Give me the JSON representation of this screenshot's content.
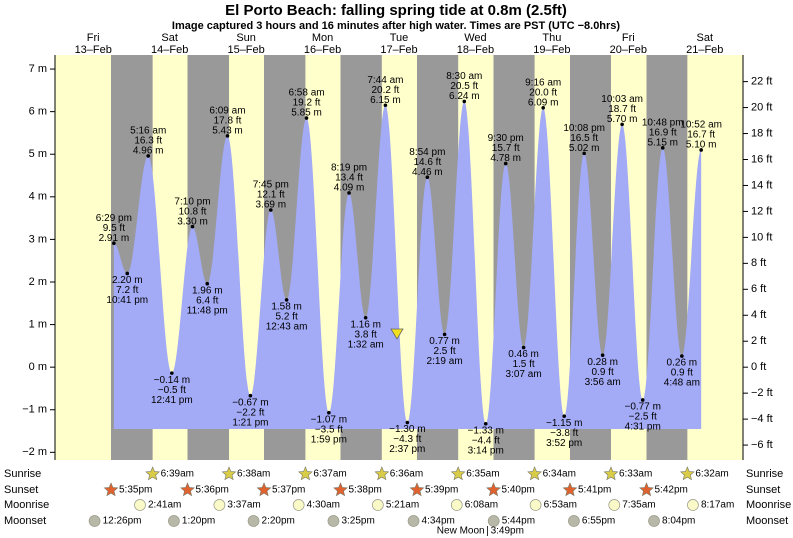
{
  "chart_data": {
    "type": "tide",
    "title": "El Porto Beach: falling  spring tide at 0.8m (2.5ft)",
    "subtitle": "Image captured 3 hours and 16 minutes after high water. Times are PST (UTC −8.0hrs)",
    "ylim": [
      -2.18,
      7.33
    ],
    "yticks": [
      {
        "value": -2,
        "label": "−2 m"
      },
      {
        "value": -1,
        "label": "−1 m"
      },
      {
        "value": 0,
        "label": "0 m"
      },
      {
        "value": 1,
        "label": "1 m"
      },
      {
        "value": 2,
        "label": "2 m"
      },
      {
        "value": 3,
        "label": "3 m"
      },
      {
        "value": 4,
        "label": "4 m"
      },
      {
        "value": 5,
        "label": "5 m"
      },
      {
        "value": 6,
        "label": "6 m"
      },
      {
        "value": 7,
        "label": "7 m"
      }
    ],
    "y2lim": [
      -7.15,
      24.05
    ],
    "y2ticks": [
      {
        "value": -6,
        "label": "−6 ft"
      },
      {
        "value": -4,
        "label": "−4 ft"
      },
      {
        "value": -2,
        "label": "−2 ft"
      },
      {
        "value": 0,
        "label": "0 ft"
      },
      {
        "value": 2,
        "label": "2 ft"
      },
      {
        "value": 4,
        "label": "4 ft"
      },
      {
        "value": 6,
        "label": "6 ft"
      },
      {
        "value": 8,
        "label": "8 ft"
      },
      {
        "value": 10,
        "label": "10 ft"
      },
      {
        "value": 12,
        "label": "12 ft"
      },
      {
        "value": 14,
        "label": "14 ft"
      },
      {
        "value": 16,
        "label": "16 ft"
      },
      {
        "value": 18,
        "label": "18 ft"
      },
      {
        "value": 20,
        "label": "20 ft"
      },
      {
        "value": 22,
        "label": "22 ft"
      }
    ],
    "colors": {
      "day": "#ffffcc",
      "night": "#999999",
      "tide": "#a3aaf6",
      "date": "#ee0000",
      "sunrise": "#d8cc48",
      "sunset": "#e0622e",
      "moonrise": "#fafac8",
      "moonset": "#b8b8a8"
    },
    "rows": {
      "sunrise": "Sunrise",
      "sunset": "Sunset",
      "moonrise": "Moonrise",
      "moonset": "Moonset"
    },
    "days": [
      {
        "weekday": "Fri",
        "date": "13–Feb",
        "sunrise": null,
        "sunset": "5:35pm",
        "moonrise": null,
        "moonset": "12:26pm",
        "tides": {
          "times": [
            "6:29 pm",
            "10:41 pm"
          ],
          "values": [
            2.91,
            2.2
          ],
          "value_labels": [
            "2.91 m",
            "2.20 m"
          ],
          "ft_labels": [
            "9.5 ft",
            "7.2 ft"
          ]
        }
      },
      {
        "weekday": "Sat",
        "date": "14–Feb",
        "sunrise": "6:39am",
        "sunset": "5:36pm",
        "moonrise": "2:41am",
        "moonset": "1:20pm",
        "tides": {
          "times": [
            "5:16 am",
            "12:41 pm",
            "7:10 pm",
            "11:48 pm"
          ],
          "values": [
            4.96,
            -0.14,
            3.3,
            1.96
          ],
          "value_labels": [
            "4.96 m",
            "−0.14 m",
            "3.30 m",
            "1.96 m"
          ],
          "ft_labels": [
            "16.3 ft",
            "−0.5 ft",
            "10.8 ft",
            "6.4 ft"
          ]
        }
      },
      {
        "weekday": "Sun",
        "date": "15–Feb",
        "sunrise": "6:38am",
        "sunset": "5:37pm",
        "moonrise": "3:37am",
        "moonset": "2:20pm",
        "tides": {
          "times": [
            "6:09 am",
            "1:21 pm",
            "7:45 pm"
          ],
          "values": [
            5.43,
            -0.67,
            3.69
          ],
          "value_labels": [
            "5.43 m",
            "−0.67 m",
            "3.69 m"
          ],
          "ft_labels": [
            "17.8 ft",
            "−2.2 ft",
            "12.1 ft"
          ]
        }
      },
      {
        "weekday": "Mon",
        "date": "16–Feb",
        "sunrise": "6:37am",
        "sunset": "5:38pm",
        "moonrise": "4:30am",
        "moonset": "3:25pm",
        "tides": {
          "times": [
            "12:43 am",
            "6:58 am",
            "1:59 pm",
            "8:19 pm"
          ],
          "values": [
            1.58,
            5.85,
            -1.07,
            4.09
          ],
          "value_labels": [
            "1.58 m",
            "5.85 m",
            "−1.07 m",
            "4.09 m"
          ],
          "ft_labels": [
            "5.2 ft",
            "19.2 ft",
            "−3.5 ft",
            "13.4 ft"
          ]
        }
      },
      {
        "weekday": "Tue",
        "date": "17–Feb",
        "sunrise": "6:36am",
        "sunset": "5:39pm",
        "moonrise": "5:21am",
        "moonset": "4:34pm",
        "tides": {
          "times": [
            "1:32 am",
            "7:44 am",
            "2:37 pm",
            "8:54 pm"
          ],
          "values": [
            1.16,
            6.15,
            -1.3,
            4.46
          ],
          "value_labels": [
            "1.16 m",
            "6.15 m",
            "−1.30 m",
            "4.46 m"
          ],
          "ft_labels": [
            "3.8 ft",
            "20.2 ft",
            "−4.3 ft",
            "14.6 ft"
          ]
        }
      },
      {
        "weekday": "Wed",
        "date": "18–Feb",
        "sunrise": "6:35am",
        "sunset": "5:40pm",
        "moonrise": "6:08am",
        "moonset": "5:44pm",
        "moon_phase": {
          "name": "New Moon",
          "time": "3:49pm"
        },
        "tides": {
          "times": [
            "2:19 am",
            "8:30 am",
            "3:14 pm",
            "9:30 pm"
          ],
          "values": [
            0.77,
            6.24,
            -1.33,
            4.78
          ],
          "value_labels": [
            "0.77 m",
            "6.24 m",
            "−1.33 m",
            "4.78 m"
          ],
          "ft_labels": [
            "2.5 ft",
            "20.5 ft",
            "−4.4 ft",
            "15.7 ft"
          ]
        }
      },
      {
        "weekday": "Thu",
        "date": "19–Feb",
        "sunrise": "6:34am",
        "sunset": "5:41pm",
        "moonrise": "6:53am",
        "moonset": "6:55pm",
        "tides": {
          "times": [
            "3:07 am",
            "9:16 am",
            "3:52 pm",
            "10:08 pm"
          ],
          "values": [
            0.46,
            6.09,
            -1.15,
            5.02
          ],
          "value_labels": [
            "0.46 m",
            "6.09 m",
            "−1.15 m",
            "5.02 m"
          ],
          "ft_labels": [
            "1.5 ft",
            "20.0 ft",
            "−3.8 ft",
            "16.5 ft"
          ]
        }
      },
      {
        "weekday": "Fri",
        "date": "20–Feb",
        "sunrise": "6:33am",
        "sunset": "5:42pm",
        "moonrise": "7:35am",
        "moonset": "8:04pm",
        "tides": {
          "times": [
            "3:56 am",
            "10:03 am",
            "4:31 pm",
            "10:48 pm"
          ],
          "values": [
            0.28,
            5.7,
            -0.77,
            5.15
          ],
          "value_labels": [
            "0.28 m",
            "5.70 m",
            "−0.77 m",
            "5.15 m"
          ],
          "ft_labels": [
            "0.9 ft",
            "18.7 ft",
            "−2.5 ft",
            "16.9 ft"
          ]
        }
      },
      {
        "weekday": "Sat",
        "date": "21–Feb",
        "sunrise": "6:32am",
        "sunset": null,
        "moonrise": "8:17am",
        "moonset": null,
        "tides": {
          "times": [
            "4:48 am",
            "10:52 am"
          ],
          "values": [
            0.26,
            5.1
          ],
          "value_labels": [
            "0.26 m",
            "5.10 m"
          ],
          "ft_labels": [
            "0.9 ft",
            "16.7 ft"
          ]
        }
      }
    ]
  }
}
